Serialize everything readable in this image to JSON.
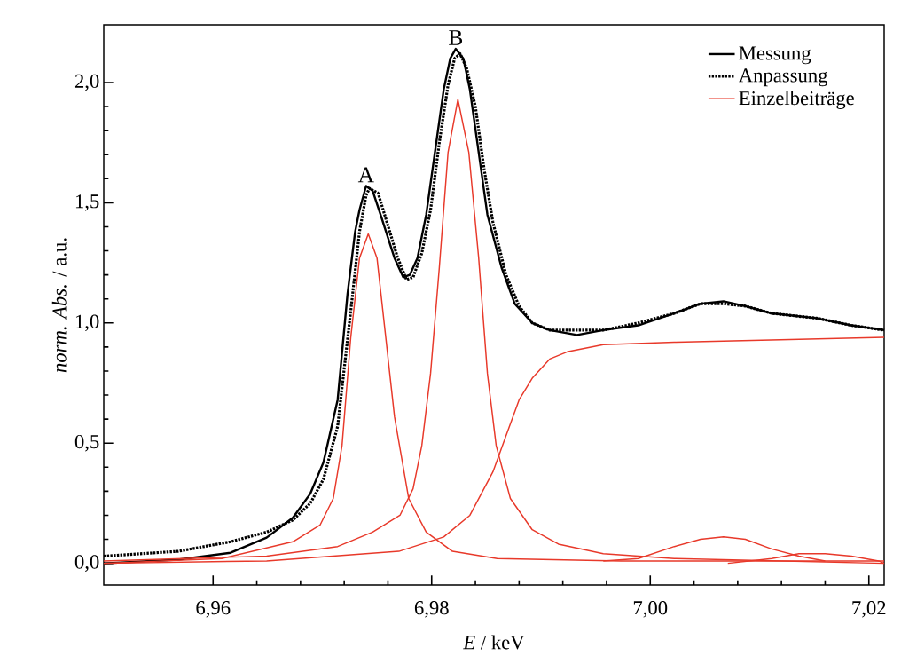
{
  "chart_data": {
    "type": "line",
    "xlabel": "*E* / keV",
    "ylabel": "*norm. Abs.* / a.u.",
    "xlim": [
      6.95,
      7.0214
    ],
    "ylim": [
      -0.09,
      2.24
    ],
    "xticks": [
      {
        "value": 6.96,
        "label": "6,96"
      },
      {
        "value": 6.98,
        "label": "6,98"
      },
      {
        "value": 7.0,
        "label": "7,00"
      },
      {
        "value": 7.02,
        "label": "7,02"
      }
    ],
    "yticks": [
      {
        "value": 0,
        "label": "0,0"
      },
      {
        "value": 0.5,
        "label": "0,5"
      },
      {
        "value": 1.0,
        "label": "1,0"
      },
      {
        "value": 1.5,
        "label": "1,5"
      },
      {
        "value": 2.0,
        "label": "2,0"
      }
    ],
    "legend": "top right",
    "grid": false,
    "annotations": [
      {
        "text": "A",
        "x": 6.974,
        "y": 1.57
      },
      {
        "text": "B",
        "x": 6.9822,
        "y": 2.14
      }
    ],
    "series": [
      {
        "name": "Messung",
        "color": "#000000",
        "line_style": "solid",
        "x": [
          6.95,
          6.9568,
          6.9616,
          6.9649,
          6.9673,
          6.9689,
          6.9701,
          6.9714,
          6.9723,
          6.973,
          6.9734,
          6.974,
          6.9746,
          6.9754,
          6.9766,
          6.9774,
          6.978,
          6.9787,
          6.9795,
          6.9803,
          6.9811,
          6.9817,
          6.9822,
          6.9829,
          6.9835,
          6.9843,
          6.9851,
          6.9864,
          6.9876,
          6.9892,
          6.9908,
          6.9933,
          6.9957,
          6.9989,
          7.0022,
          7.0046,
          7.0067,
          7.0087,
          7.0111,
          7.0152,
          7.0184,
          7.0214
        ],
        "values": [
          0.0,
          0.015,
          0.044,
          0.107,
          0.19,
          0.29,
          0.42,
          0.68,
          1.12,
          1.38,
          1.47,
          1.57,
          1.55,
          1.44,
          1.27,
          1.19,
          1.2,
          1.27,
          1.45,
          1.71,
          1.97,
          2.1,
          2.14,
          2.1,
          1.97,
          1.71,
          1.45,
          1.23,
          1.08,
          1.0,
          0.97,
          0.95,
          0.97,
          0.99,
          1.04,
          1.08,
          1.09,
          1.07,
          1.04,
          1.02,
          0.99,
          0.97
        ]
      },
      {
        "name": "Anpassung",
        "color": "#000000",
        "line_style": "dotted",
        "x": [
          6.95,
          6.9568,
          6.9616,
          6.9649,
          6.9673,
          6.9689,
          6.9701,
          6.9714,
          6.9726,
          6.9734,
          6.974,
          6.9743,
          6.9751,
          6.9759,
          6.9769,
          6.9777,
          6.9783,
          6.9791,
          6.9799,
          6.9807,
          6.9815,
          6.9821,
          6.9826,
          6.9832,
          6.984,
          6.9848,
          6.9856,
          6.9868,
          6.988,
          6.9892,
          6.9908,
          6.9933,
          6.9957,
          6.9989,
          7.0022,
          7.0046,
          7.0067,
          7.0087,
          7.0111,
          7.0152,
          7.0184,
          7.0214
        ],
        "values": [
          0.03,
          0.05,
          0.09,
          0.13,
          0.18,
          0.25,
          0.35,
          0.57,
          1.05,
          1.38,
          1.53,
          1.56,
          1.54,
          1.42,
          1.27,
          1.18,
          1.19,
          1.29,
          1.47,
          1.75,
          1.99,
          2.1,
          2.12,
          2.06,
          1.9,
          1.64,
          1.42,
          1.2,
          1.07,
          1.0,
          0.97,
          0.97,
          0.97,
          1.0,
          1.04,
          1.08,
          1.08,
          1.07,
          1.04,
          1.02,
          0.99,
          0.97
        ]
      },
      {
        "name": "Einzelbeiträge",
        "color": "#e8392a",
        "line_style": "solid",
        "x": [
          6.95,
          6.9608,
          6.9673,
          6.9698,
          6.971,
          6.9718,
          6.9726,
          6.9734,
          6.9742,
          6.975,
          6.9758,
          6.9766,
          6.9779,
          6.9795,
          6.9819,
          6.986,
          6.9973,
          7.0214
        ],
        "values": [
          0.0,
          0.02,
          0.09,
          0.16,
          0.27,
          0.49,
          0.94,
          1.27,
          1.37,
          1.27,
          0.94,
          0.61,
          0.27,
          0.13,
          0.05,
          0.02,
          0.01,
          0.01
        ]
      },
      {
        "color": "#e8392a",
        "line_style": "solid",
        "x": [
          6.95,
          6.9649,
          6.9714,
          6.9746,
          6.9771,
          6.9783,
          6.9791,
          6.9799,
          6.9807,
          6.9815,
          6.9824,
          6.9834,
          6.9843,
          6.9851,
          6.9859,
          6.9872,
          6.9892,
          6.9916,
          6.9957,
          7.0022,
          7.0214
        ],
        "values": [
          0.01,
          0.03,
          0.07,
          0.13,
          0.2,
          0.31,
          0.49,
          0.79,
          1.23,
          1.71,
          1.93,
          1.71,
          1.27,
          0.79,
          0.49,
          0.27,
          0.14,
          0.08,
          0.04,
          0.02,
          0.0
        ]
      },
      {
        "color": "#e8392a",
        "line_style": "solid",
        "x": [
          6.95,
          6.9649,
          6.977,
          6.9811,
          6.9835,
          6.9856,
          6.9868,
          6.988,
          6.9892,
          6.9908,
          6.9924,
          6.9957,
          7.0022,
          7.0119,
          7.0214
        ],
        "values": [
          0.0,
          0.01,
          0.05,
          0.11,
          0.2,
          0.38,
          0.53,
          0.68,
          0.77,
          0.85,
          0.88,
          0.91,
          0.92,
          0.93,
          0.94
        ]
      },
      {
        "color": "#e8392a",
        "line_style": "solid",
        "x": [
          6.9957,
          6.9989,
          7.0022,
          7.0046,
          7.0067,
          7.0087,
          7.0111,
          7.0136,
          7.016
        ],
        "values": [
          0.01,
          0.02,
          0.07,
          0.1,
          0.11,
          0.1,
          0.06,
          0.03,
          0.01
        ]
      },
      {
        "color": "#e8392a",
        "line_style": "solid",
        "x": [
          7.0071,
          7.0111,
          7.0136,
          7.016,
          7.0184,
          7.0209,
          7.0214
        ],
        "values": [
          0.0,
          0.02,
          0.04,
          0.04,
          0.03,
          0.01,
          0.0
        ]
      }
    ]
  }
}
